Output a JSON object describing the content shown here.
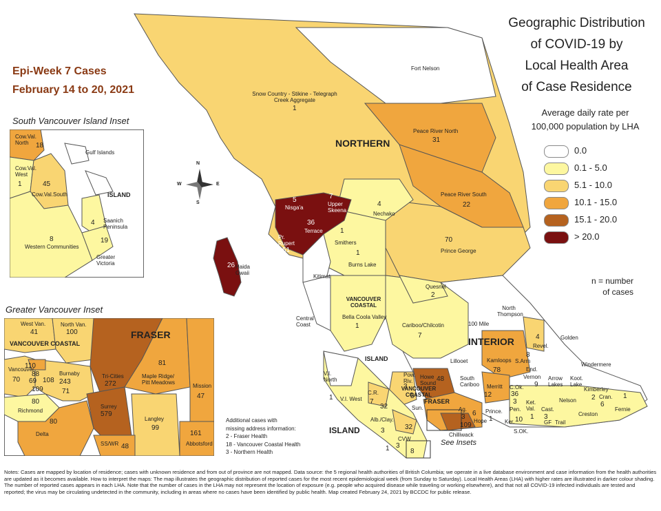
{
  "header": {
    "epi_week": "Epi-Week 7 Cases",
    "date_range": "February 14 to 20, 2021"
  },
  "title": {
    "line1": "Geographic Distribution",
    "line2": "of COVID-19 by",
    "line3": "Local Health Area",
    "line4": "of Case Residence"
  },
  "legend": {
    "subtitle1": "Average daily rate per",
    "subtitle2": "100,000 population by LHA",
    "items": [
      {
        "label": "0.0",
        "color": "#ffffff"
      },
      {
        "label": "0.1 - 5.0",
        "color": "#fdf7a0"
      },
      {
        "label": "5.1 - 10.0",
        "color": "#f9d572"
      },
      {
        "label": "10.1 - 15.0",
        "color": "#f0a63e"
      },
      {
        "label": "15.1 - 20.0",
        "color": "#b5621f"
      },
      {
        "label": "> 20.0",
        "color": "#7a1010"
      }
    ],
    "n_note1": "n = number",
    "n_note2": "of cases"
  },
  "regions": {
    "northern": "NORTHERN",
    "interior": "INTERIOR",
    "vancouver_coastal": "VANCOUVER COASTAL",
    "vancouver_coastal_south": "VANCOUVER COASTAL",
    "fraser": "FRASER",
    "island": "ISLAND",
    "island_south": "ISLAND"
  },
  "compass": {
    "n": "N",
    "s": "S",
    "e": "E",
    "w": "W"
  },
  "lhas": {
    "snow_country": {
      "name": "Snow Country - Stikine - Telegraph Creek Aggregate",
      "n": "1"
    },
    "fort_nelson": {
      "name": "Fort Nelson",
      "n": ""
    },
    "peace_river_north": {
      "name": "Peace River North",
      "n": "31"
    },
    "peace_river_south": {
      "name": "Peace River South",
      "n": "22"
    },
    "nisgaa": {
      "name": "Nisga'a",
      "n": "5"
    },
    "upper_skeena": {
      "name": "Upper Skeena",
      "n": "7"
    },
    "terrace": {
      "name": "Terrace",
      "n": "36"
    },
    "prince_rupert": {
      "name": "Pr. Rupert",
      "n": "51"
    },
    "haida_gwaii": {
      "name": "Haida Gwaii",
      "n": "26"
    },
    "nechako": {
      "name": "Nechako",
      "n": "4"
    },
    "smithers": {
      "name": "Smithers",
      "n": "1"
    },
    "burns_lake": {
      "name": "Burns Lake",
      "n": "1"
    },
    "prince_george": {
      "name": "Prince George",
      "n": "70"
    },
    "kitimat": {
      "name": "Kitimat",
      "n": ""
    },
    "quesnel": {
      "name": "Quesnel",
      "n": "2"
    },
    "central_coast": {
      "name": "Central Coast",
      "n": ""
    },
    "bella_coola": {
      "name": "Bella Coola Valley",
      "n": "1"
    },
    "cariboo": {
      "name": "Cariboo/Chilcotin",
      "n": "7"
    },
    "hundred_mile": {
      "name": "100 Mile",
      "n": ""
    },
    "north_thompson": {
      "name": "North Thompson",
      "n": ""
    },
    "golden": {
      "name": "Golden",
      "n": ""
    },
    "revelstoke": {
      "name": "Revel.",
      "n": "4"
    },
    "kamloops": {
      "name": "Kamloops",
      "n": "78"
    },
    "salmon_arm": {
      "name": "S.Arm",
      "n": "8"
    },
    "enderby": {
      "name": "End.",
      "n": ""
    },
    "vernon": {
      "name": "Vernon",
      "n": "9"
    },
    "windermere": {
      "name": "Windermere",
      "n": ""
    },
    "arrow_lakes": {
      "name": "Arrow Lakes",
      "n": ""
    },
    "kootenay_lake": {
      "name": "Koot. Lake",
      "n": ""
    },
    "kimberley": {
      "name": "Kimberley",
      "n": "2"
    },
    "cranbrook": {
      "name": "Cran.",
      "n": "6"
    },
    "fernie": {
      "name": "Fernie",
      "n": "1"
    },
    "lillooet": {
      "name": "Lillooet",
      "n": ""
    },
    "south_cariboo": {
      "name": "South Cariboo",
      "n": ""
    },
    "merritt": {
      "name": "Merritt",
      "n": "12"
    },
    "central_okanagan": {
      "name": "C.Ok.",
      "n": "36"
    },
    "penticton": {
      "name": "Pen.",
      "n": "3"
    },
    "kettle_valley": {
      "name": "Ket. Val.",
      "n": "1"
    },
    "nelson": {
      "name": "Nelson",
      "n": ""
    },
    "castlegar": {
      "name": "Cast.",
      "n": "3"
    },
    "grand_forks": {
      "name": "GF",
      "n": ""
    },
    "trail": {
      "name": "Trail",
      "n": ""
    },
    "creston": {
      "name": "Creston",
      "n": ""
    },
    "keremeos": {
      "name": "Ker.",
      "n": ""
    },
    "south_okanagan": {
      "name": "S.OK.",
      "n": "10"
    },
    "princeton": {
      "name": "Prince.",
      "n": "1"
    },
    "hope": {
      "name": "Hope",
      "n": "6"
    },
    "agassiz": {
      "name": "Ag.",
      "n": "3"
    },
    "chilliwack": {
      "name": "Chilliwack",
      "n": "109"
    },
    "howe_sound": {
      "name": "Howe Sound",
      "n": "48"
    },
    "powell_river": {
      "name": "Pow. Riv.",
      "n": "3"
    },
    "sunshine_coast": {
      "name": "Sun.",
      "n": "5"
    },
    "vi_north": {
      "name": "V.I. North",
      "n": ""
    },
    "vi_west": {
      "name": "V.I. West",
      "n": "1"
    },
    "campbell_river": {
      "name": "C.R.",
      "n": "7"
    },
    "comox": {
      "name": "Comox",
      "n": "32"
    },
    "alberni": {
      "name": "Alb./Clay.",
      "n": "3"
    },
    "cowichan": {
      "name": "CVW",
      "n": "3"
    },
    "greater_nanaimo": {
      "name": "Nanaimo",
      "n": "32"
    },
    "sooke": {
      "name": "Sooke",
      "n": "8"
    },
    "inset_west_side": {
      "name": "",
      "n": "1"
    }
  },
  "south_vi_inset": {
    "title": "South Vancouver Island Inset",
    "areas": [
      {
        "name": "Cow.Val. North",
        "n": "18"
      },
      {
        "name": "Gulf Islands",
        "n": ""
      },
      {
        "name": "Cow.Val. West",
        "n": "1"
      },
      {
        "name": "Cow.Val.South",
        "n": "45"
      },
      {
        "name": "ISLAND",
        "n": ""
      },
      {
        "name": "Saanich Peninsula",
        "n": "4"
      },
      {
        "name": "Western Communities",
        "n": "8"
      },
      {
        "name": "Greater Victoria",
        "n": "19"
      }
    ]
  },
  "gv_inset": {
    "title": "Greater Vancouver Inset",
    "region_vch": "VANCOUVER COASTAL",
    "region_fraser": "FRASER",
    "areas": [
      {
        "name": "West Van.",
        "n": "41"
      },
      {
        "name": "North Van.",
        "n": "100"
      },
      {
        "name": "Tri-Cities",
        "n": "272"
      },
      {
        "name": "Maple Ridge/ Pitt Meadows",
        "n": "81"
      },
      {
        "name": "Mission",
        "n": "47"
      },
      {
        "name": "Vancouver",
        "n": "70"
      },
      {
        "name": "",
        "n": "110"
      },
      {
        "name": "",
        "n": "88"
      },
      {
        "name": "",
        "n": "69"
      },
      {
        "name": "",
        "n": "108"
      },
      {
        "name": "",
        "n": "109"
      },
      {
        "name": "Burnaby",
        "n": "243"
      },
      {
        "name": "",
        "n": "71"
      },
      {
        "name": "Richmond",
        "n": "80"
      },
      {
        "name": "Surrey",
        "n": "579"
      },
      {
        "name": "Delta",
        "n": "80"
      },
      {
        "name": "Langley",
        "n": "99"
      },
      {
        "name": "Abbotsford",
        "n": "161"
      },
      {
        "name": "SS/WR",
        "n": "48"
      }
    ]
  },
  "additional": {
    "line1": "Additional cases with",
    "line2": "missing address information:",
    "line3": "2 - Fraser Health",
    "line4": "18 - Vancouver Coastal Health",
    "line5": "3 - Northern Health"
  },
  "see_insets": "See Insets",
  "notes": "Notes: Cases are mapped by location of residence; cases with unknown residence and from out of province are not mapped. Data source: the 5 regional health authorities of British Columbia; we operate in a live database environment and case information from the health authorities are updated as it becomes available. How to interpret the maps: The map illustrates the geographic distribution of reported cases for the most recent epidemiological week (from Sunday to Saturday). Local Health Areas (LHA) with higher rates are illustrated in darker colour shading. The number of reported cases appears in each LHA. Note that the number of cases in the LHA may not represent the location of exposure (e.g. people who acquired disease while traveling or working elsewhere), and that not all COVID-19 infected individuals are tested and reported; the virus may be circulating undetected in the community, including in areas where no cases have been identified by public health. Map created February 24, 2021 by BCCDC for public release."
}
